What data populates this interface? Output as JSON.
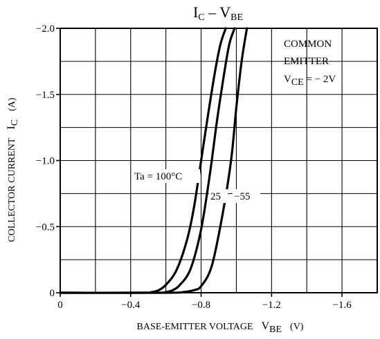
{
  "chart_data": {
    "type": "line",
    "title_main": "I",
    "title_sub1": "C",
    "title_dash": " – ",
    "title_main2": "V",
    "title_sub2": "BE",
    "xlabel": "BASE-EMITTER VOLTAGE",
    "xlabel_var": "V",
    "xlabel_var_sub": "BE",
    "xlabel_unit": "(V)",
    "ylabel": "COLLECTOR CURRENT",
    "ylabel_var": "I",
    "ylabel_var_sub": "C",
    "ylabel_unit": "(A)",
    "xlim": [
      0,
      -1.8
    ],
    "ylim": [
      0,
      -2.0
    ],
    "grid": true,
    "x_ticks": [
      {
        "value": 0,
        "label": "0"
      },
      {
        "value": -0.4,
        "label": "−0.4"
      },
      {
        "value": -0.8,
        "label": "−0.8"
      },
      {
        "value": -1.2,
        "label": "−1.2"
      },
      {
        "value": -1.6,
        "label": "−1.6"
      }
    ],
    "y_ticks": [
      {
        "value": 0,
        "label": "0"
      },
      {
        "value": -0.5,
        "label": "−0.5"
      },
      {
        "value": -1.0,
        "label": "−1.0"
      },
      {
        "value": -1.5,
        "label": "−1.5"
      },
      {
        "value": -2.0,
        "label": "−2.0"
      }
    ],
    "conditions": {
      "line1": "COMMON",
      "line2": "EMITTER",
      "vce_var": "V",
      "vce_sub": "CE",
      "vce_value": " = − 2V"
    },
    "series": [
      {
        "name": "Ta = 100°C",
        "x": [
          0,
          -0.45,
          -0.52,
          -0.56,
          -0.6,
          -0.66,
          -0.72,
          -0.76,
          -0.8,
          -0.84,
          -0.88,
          -0.91,
          -0.94
        ],
        "y": [
          0,
          0,
          -0.005,
          -0.02,
          -0.06,
          -0.17,
          -0.4,
          -0.65,
          -1.0,
          -1.35,
          -1.68,
          -1.88,
          -2.0
        ]
      },
      {
        "name": "25",
        "x": [
          0,
          -0.52,
          -0.6,
          -0.64,
          -0.68,
          -0.74,
          -0.8,
          -0.85,
          -0.89,
          -0.93,
          -0.96,
          -0.99
        ],
        "y": [
          0,
          0,
          -0.005,
          -0.02,
          -0.06,
          -0.18,
          -0.48,
          -0.9,
          -1.3,
          -1.65,
          -1.88,
          -2.0
        ]
      },
      {
        "name": "−55",
        "x": [
          0,
          -0.6,
          -0.7,
          -0.76,
          -0.8,
          -0.86,
          -0.92,
          -0.97,
          -1.0,
          -1.03,
          -1.06
        ],
        "y": [
          0,
          0,
          -0.005,
          -0.02,
          -0.05,
          -0.2,
          -0.58,
          -1.0,
          -1.4,
          -1.75,
          -2.0
        ]
      }
    ]
  }
}
